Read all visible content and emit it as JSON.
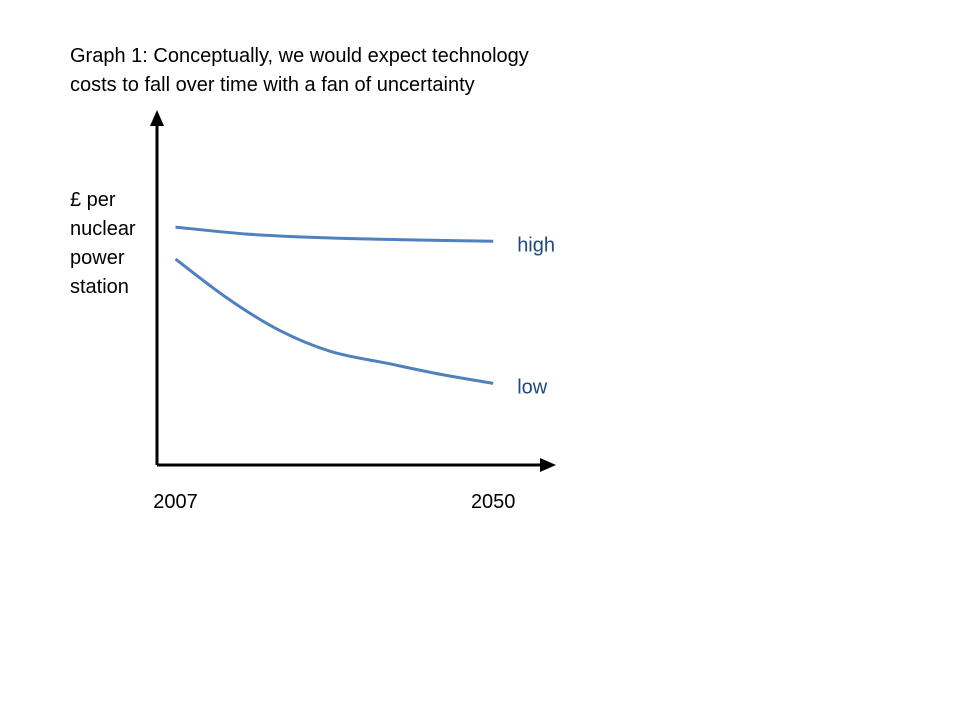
{
  "chart_data": {
    "type": "line",
    "title": "Graph 1:  Conceptually, we would expect technology costs to fall over time with a fan of uncertainty",
    "title_lines": [
      "Graph 1:  Conceptually, we would expect technology costs to fall over time with a fan of uncertainty"
    ],
    "title_line_1": "Graph 1:  Conceptually, we would expect technology",
    "title_line_2": "costs to fall over time with a fan of uncertainty",
    "xlabel": "",
    "ylabel": "£ per nuclear power station",
    "ylabel_lines": [
      "£ per",
      "nuclear",
      "power",
      "station"
    ],
    "x_ticks": [
      "2007",
      "2050"
    ],
    "xlim": [
      2004.5,
      2058.5
    ],
    "ylim": [
      0,
      100
    ],
    "y_ticks": [],
    "grid": false,
    "legend": "none",
    "series": [
      {
        "name": "high",
        "color": "#4f81bd",
        "x": [
          2007,
          2017,
          2027,
          2037,
          2050
        ],
        "y": [
          67,
          65,
          64,
          63.5,
          63
        ]
      },
      {
        "name": "low",
        "color": "#4f81bd",
        "x": [
          2007,
          2014,
          2021,
          2028,
          2036,
          2043,
          2050
        ],
        "y": [
          58,
          47,
          38,
          32,
          28.5,
          25.5,
          23
        ]
      }
    ]
  }
}
